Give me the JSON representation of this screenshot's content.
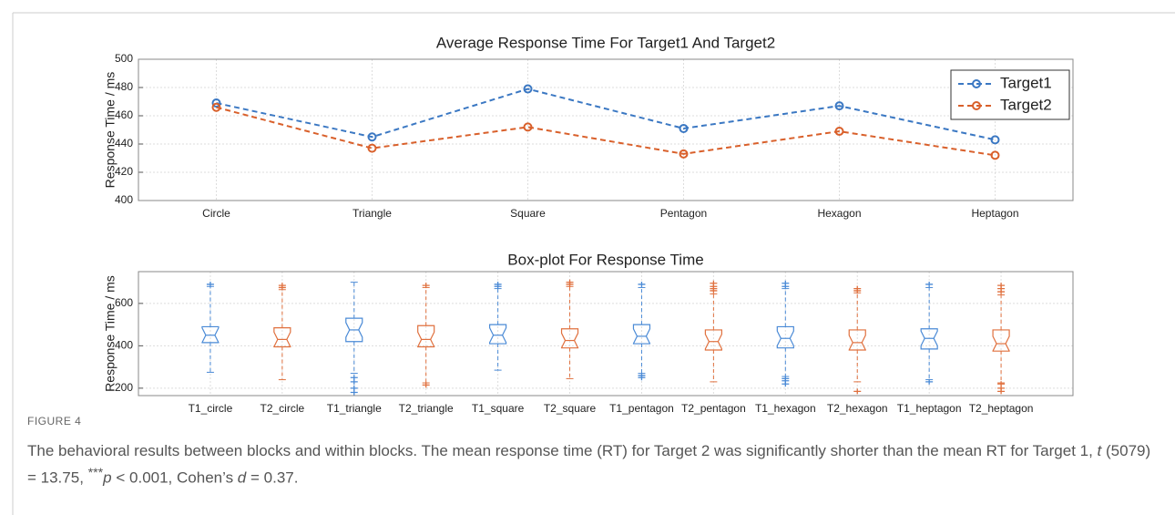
{
  "chart_data": [
    {
      "type": "line",
      "title": "Average Response Time For Target1 And Target2",
      "ylabel": "Response Time / ms",
      "categories": [
        "Circle",
        "Triangle",
        "Square",
        "Pentagon",
        "Hexagon",
        "Heptagon"
      ],
      "series": [
        {
          "name": "Target1",
          "color": "#3b78c3",
          "values": [
            469,
            445,
            479,
            451,
            467,
            443
          ]
        },
        {
          "name": "Target2",
          "color": "#d9602b",
          "values": [
            466,
            437,
            452,
            433,
            449,
            432
          ]
        }
      ],
      "ylim": [
        400,
        500
      ],
      "yticks": [
        400,
        420,
        440,
        460,
        480,
        500
      ],
      "grid": true,
      "legend": "upper right"
    },
    {
      "type": "box",
      "title": "Box-plot For Response Time",
      "ylabel": "Response Time / ms",
      "categories": [
        "T1_circle",
        "T2_circle",
        "T1_triangle",
        "T2_triangle",
        "T1_square",
        "T2_square",
        "T1_pentagon",
        "T2_pentagon",
        "T1_hexagon",
        "T2_hexagon",
        "T1_heptagon",
        "T2_heptagon"
      ],
      "colors": [
        "#4a8ad6",
        "#e0703e",
        "#4a8ad6",
        "#e0703e",
        "#4a8ad6",
        "#e0703e",
        "#4a8ad6",
        "#e0703e",
        "#4a8ad6",
        "#e0703e",
        "#4a8ad6",
        "#e0703e"
      ],
      "q1": [
        415,
        395,
        420,
        395,
        410,
        390,
        410,
        380,
        390,
        380,
        385,
        375
      ],
      "median": [
        450,
        430,
        475,
        430,
        450,
        425,
        445,
        420,
        435,
        415,
        435,
        410
      ],
      "q3": [
        490,
        485,
        530,
        495,
        500,
        480,
        500,
        475,
        490,
        475,
        480,
        475
      ],
      "whisker_low": [
        275,
        240,
        270,
        225,
        285,
        245,
        270,
        230,
        255,
        230,
        240,
        225
      ],
      "whisker_high": [
        680,
        665,
        700,
        675,
        670,
        680,
        675,
        645,
        670,
        650,
        675,
        640
      ],
      "outliers": [
        [
          690
        ],
        [
          675,
          685
        ],
        [
          250,
          230,
          200,
          180
        ],
        [
          215,
          685
        ],
        [
          680,
          690
        ],
        [
          690,
          700
        ],
        [
          250,
          260,
          690
        ],
        [
          660,
          670,
          680,
          695
        ],
        [
          220,
          235,
          245,
          680,
          695
        ],
        [
          185,
          660,
          670
        ],
        [
          230,
          690
        ],
        [
          185,
          200,
          220,
          655,
          670,
          685
        ]
      ],
      "ylim": [
        165,
        750
      ],
      "yticks": [
        200,
        400,
        600
      ],
      "grid": true
    }
  ],
  "caption": {
    "label": "FIGURE 4",
    "parts": [
      "The behavioral results between blocks and within blocks. The mean response time (RT) for Target 2 was significantly shorter than the mean RT for Target 1, ",
      "t",
      " (5079) = 13.75, ",
      "***",
      "p",
      " < 0.001, Cohen’s ",
      "d",
      " = 0.37."
    ]
  }
}
